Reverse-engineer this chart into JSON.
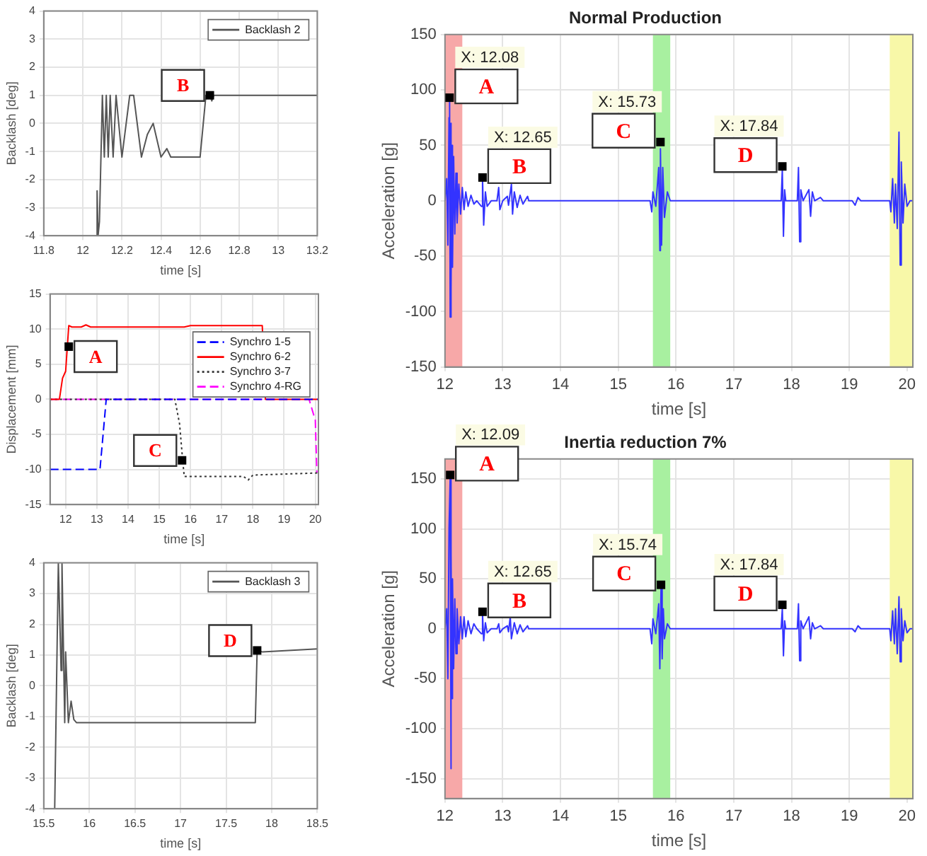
{
  "chart_data": [
    {
      "type": "line",
      "xlabel": "time [s]",
      "ylabel": "Backlash [deg]",
      "xlim": [
        11.8,
        13.2
      ],
      "xticks": [
        11.8,
        12,
        12.2,
        12.4,
        12.6,
        12.8,
        13,
        13.2
      ],
      "ylim": [
        -4,
        4
      ],
      "yticks": [
        -4,
        -3,
        -2,
        -1,
        0,
        1,
        2,
        3,
        4
      ],
      "grid": true,
      "legend": "top right",
      "series": [
        {
          "name": "Backlash 2",
          "color": "#555555",
          "x": [
            12.07,
            12.073,
            12.078,
            12.085,
            12.1,
            12.11,
            12.12,
            12.13,
            12.14,
            12.155,
            12.17,
            12.2,
            12.24,
            12.26,
            12.3,
            12.33,
            12.36,
            12.4,
            12.43,
            12.45,
            12.5,
            12.6,
            12.63,
            12.65,
            12.66,
            12.67,
            13.2
          ],
          "values": [
            -4,
            -2.4,
            -4,
            -3.5,
            1,
            -1.2,
            1,
            -1.2,
            1,
            -1.2,
            1,
            -1.2,
            1,
            1,
            -1.2,
            -0.4,
            0,
            -1.2,
            -0.9,
            -1.2,
            -1.2,
            -1.2,
            1,
            1,
            0.8,
            1,
            1
          ]
        }
      ],
      "annotations": [
        {
          "text": "B",
          "x": 12.65,
          "y": 1
        }
      ]
    },
    {
      "type": "line",
      "xlabel": "time [s]",
      "ylabel": "Displacement [mm]",
      "xlim": [
        11.5,
        20.1
      ],
      "xticks": [
        12,
        13,
        14,
        15,
        16,
        17,
        18,
        19,
        20
      ],
      "ylim": [
        -15,
        15
      ],
      "yticks": [
        -15,
        -10,
        -5,
        0,
        5,
        10,
        15
      ],
      "grid": true,
      "legend": "right",
      "series": [
        {
          "name": "Synchro 1-5",
          "color": "#0000ff",
          "line_style": "dashed",
          "x": [
            11.5,
            13.1,
            13.3,
            20.1
          ],
          "values": [
            -10,
            -10,
            0,
            0
          ]
        },
        {
          "name": "Synchro 6-2",
          "color": "#ff0000",
          "line_style": "solid",
          "x": [
            11.5,
            11.8,
            11.9,
            12,
            12.1,
            12.2,
            12.5,
            12.65,
            12.8,
            15.8,
            16,
            18.3,
            18.4,
            20.1
          ],
          "values": [
            0,
            0,
            3,
            4,
            10.5,
            10.3,
            10.3,
            10.6,
            10.3,
            10.3,
            10.5,
            10.5,
            0,
            0
          ]
        },
        {
          "name": "Synchro 3-7",
          "color": "#333333",
          "line_style": "dotted",
          "x": [
            11.5,
            15.5,
            15.65,
            15.75,
            15.8,
            17.7,
            17.85,
            18,
            20.1
          ],
          "values": [
            0,
            0,
            -3.5,
            -8.7,
            -11,
            -11,
            -11.5,
            -10.8,
            -10.5
          ]
        },
        {
          "name": "Synchro 4-RG",
          "color": "#ff00ff",
          "line_style": "dashed",
          "x": [
            11.5,
            19.8,
            20,
            20.05
          ],
          "values": [
            0,
            0,
            -3,
            -10.5
          ]
        }
      ],
      "annotations": [
        {
          "text": "A",
          "x": 12.1,
          "y": 7.5
        },
        {
          "text": "C",
          "x": 15.73,
          "y": -8.7
        }
      ]
    },
    {
      "type": "line",
      "xlabel": "time [s]",
      "ylabel": "Backlash [deg]",
      "xlim": [
        15.5,
        18.5
      ],
      "xticks": [
        15.5,
        16,
        16.5,
        17,
        17.5,
        18,
        18.5
      ],
      "ylim": [
        -4,
        4
      ],
      "yticks": [
        -4,
        -3,
        -2,
        -1,
        0,
        1,
        2,
        3,
        4
      ],
      "grid": true,
      "legend": "top right",
      "series": [
        {
          "name": "Backlash 3",
          "color": "#555555",
          "x": [
            15.62,
            15.66,
            15.69,
            15.7,
            15.73,
            15.74,
            15.77,
            15.8,
            15.83,
            15.86,
            17.82,
            17.84,
            17.9,
            18.5
          ],
          "values": [
            -4,
            4,
            0.5,
            4,
            -1.2,
            1.1,
            -1.2,
            -0.5,
            -1.1,
            -1.2,
            -1.2,
            1.15,
            1.1,
            1.2
          ]
        }
      ],
      "annotations": [
        {
          "text": "D",
          "x": 17.84,
          "y": 1.15
        }
      ]
    },
    {
      "type": "line",
      "title": "Normal Production",
      "xlabel": "time [s]",
      "ylabel": "Acceleration [g]",
      "xlim": [
        12,
        20.1
      ],
      "xticks": [
        12,
        13,
        14,
        15,
        16,
        17,
        18,
        19,
        20
      ],
      "ylim": [
        -150,
        150
      ],
      "yticks": [
        -150,
        -100,
        -50,
        0,
        50,
        100,
        150
      ],
      "grid": true,
      "bands": [
        {
          "axis": "x",
          "from": 12,
          "to": 12.3,
          "color": "#f7a8a8"
        },
        {
          "axis": "x",
          "from": 15.6,
          "to": 15.9,
          "color": "#a8f0a0"
        },
        {
          "axis": "x",
          "from": 19.7,
          "to": 20.1,
          "color": "#f8f8a8"
        }
      ],
      "series": [
        {
          "color": "#3333ff",
          "x": [
            12,
            12.03,
            12.05,
            12.07,
            12.08,
            12.09,
            12.1,
            12.11,
            12.12,
            12.13,
            12.15,
            12.17,
            12.19,
            12.21,
            12.24,
            12.27,
            12.3,
            12.33,
            12.36,
            12.4,
            12.45,
            12.5,
            12.55,
            12.63,
            12.65,
            12.67,
            12.7,
            12.73,
            12.8,
            12.9,
            12.93,
            12.95,
            13,
            13.08,
            13.1,
            13.15,
            13.17,
            13.2,
            13.25,
            13.3,
            13.35,
            13.43,
            13.45,
            15.55,
            15.58,
            15.6,
            15.65,
            15.7,
            15.72,
            15.73,
            15.75,
            15.77,
            15.8,
            15.85,
            15.9,
            17.82,
            17.84,
            17.86,
            17.88,
            17.9,
            18.1,
            18.12,
            18.14,
            18.16,
            18.2,
            18.3,
            18.33,
            18.36,
            18.4,
            18.5,
            18.55,
            19.05,
            19.1,
            19.15,
            19.2,
            19.7,
            19.72,
            19.75,
            19.78,
            19.8,
            19.83,
            19.86,
            19.88,
            19.9,
            19.93,
            19.96,
            20,
            20.05,
            20.1
          ],
          "values": [
            0,
            20,
            -40,
            75,
            90,
            -105,
            70,
            -80,
            50,
            -60,
            40,
            -30,
            25,
            -20,
            15,
            -12,
            12,
            -8,
            8,
            -5,
            5,
            -3,
            0,
            -5,
            21,
            -22,
            8,
            -5,
            0,
            0,
            12,
            -8,
            0,
            4,
            -4,
            15,
            -12,
            8,
            -6,
            5,
            -3,
            4,
            0,
            0,
            -10,
            8,
            -5,
            30,
            -45,
            47,
            -40,
            30,
            -15,
            8,
            0,
            0,
            28,
            -32,
            10,
            0,
            0,
            30,
            -37,
            10,
            0,
            10,
            -14,
            8,
            0,
            3,
            0,
            0,
            -4,
            3,
            0,
            0,
            -10,
            20,
            -20,
            15,
            -25,
            62,
            -58,
            35,
            -20,
            15,
            -5,
            0,
            0
          ]
        }
      ],
      "annotations": [
        {
          "text": "A",
          "x": 12.08,
          "y": 93
        },
        {
          "text": "X: 12.08",
          "x": 12.08,
          "y": 93
        },
        {
          "text": "B",
          "x": 12.65,
          "y": 21
        },
        {
          "text": "X: 12.65",
          "x": 12.65,
          "y": 21
        },
        {
          "text": "C",
          "x": 15.73,
          "y": 53
        },
        {
          "text": "X: 15.73",
          "x": 15.73,
          "y": 53
        },
        {
          "text": "D",
          "x": 17.84,
          "y": 31
        },
        {
          "text": "X: 17.84",
          "x": 17.84,
          "y": 31
        }
      ]
    },
    {
      "type": "line",
      "title": "Inertia reduction 7%",
      "xlabel": "time [s]",
      "ylabel": "Acceleration [g]",
      "xlim": [
        12,
        20.1
      ],
      "xticks": [
        12,
        13,
        14,
        15,
        16,
        17,
        18,
        19,
        20
      ],
      "ylim": [
        -170,
        170
      ],
      "yticks": [
        -150,
        -100,
        -50,
        0,
        50,
        100,
        150
      ],
      "grid": true,
      "bands": [
        {
          "axis": "x",
          "from": 12,
          "to": 12.3,
          "color": "#f7a8a8"
        },
        {
          "axis": "x",
          "from": 15.6,
          "to": 15.9,
          "color": "#a8f0a0"
        },
        {
          "axis": "x",
          "from": 19.7,
          "to": 20.1,
          "color": "#f8f8a8"
        }
      ],
      "series": [
        {
          "color": "#3333ff",
          "x": [
            12,
            12.03,
            12.05,
            12.07,
            12.09,
            12.1,
            12.11,
            12.12,
            12.13,
            12.15,
            12.17,
            12.19,
            12.21,
            12.24,
            12.27,
            12.3,
            12.33,
            12.36,
            12.4,
            12.45,
            12.5,
            12.55,
            12.63,
            12.65,
            12.67,
            12.7,
            12.73,
            12.8,
            12.9,
            12.93,
            12.95,
            13,
            13.08,
            13.1,
            13.13,
            13.15,
            13.2,
            13.25,
            13.3,
            13.35,
            13.43,
            13.45,
            15.55,
            15.58,
            15.6,
            15.65,
            15.7,
            15.72,
            15.74,
            15.76,
            15.78,
            15.8,
            15.85,
            15.9,
            17.82,
            17.84,
            17.86,
            17.88,
            17.9,
            18.1,
            18.12,
            18.14,
            18.16,
            18.2,
            18.3,
            18.33,
            18.36,
            18.4,
            18.5,
            18.55,
            19.05,
            19.1,
            19.15,
            19.2,
            19.7,
            19.72,
            19.75,
            19.78,
            19.8,
            19.83,
            19.86,
            19.88,
            19.9,
            19.93,
            19.96,
            20,
            20.05,
            20.1
          ],
          "values": [
            0,
            20,
            -50,
            100,
            152,
            -140,
            75,
            -70,
            50,
            -40,
            30,
            -25,
            20,
            -15,
            12,
            -10,
            12,
            -8,
            8,
            -5,
            5,
            0,
            -5,
            15,
            -12,
            6,
            -4,
            0,
            0,
            5,
            -4,
            0,
            3,
            -3,
            12,
            -10,
            6,
            -5,
            4,
            -3,
            3,
            0,
            0,
            -15,
            10,
            -5,
            25,
            -40,
            40,
            -30,
            20,
            -10,
            5,
            0,
            0,
            20,
            -27,
            8,
            0,
            0,
            25,
            -32,
            8,
            0,
            12,
            -10,
            6,
            0,
            3,
            0,
            0,
            -3,
            3,
            0,
            0,
            -12,
            18,
            -15,
            20,
            -25,
            32,
            -33,
            20,
            -12,
            8,
            -4,
            0,
            0
          ]
        }
      ],
      "annotations": [
        {
          "text": "A",
          "x": 12.09,
          "y": 154
        },
        {
          "text": "X: 12.09",
          "x": 12.09,
          "y": 154
        },
        {
          "text": "B",
          "x": 12.65,
          "y": 17
        },
        {
          "text": "X: 12.65",
          "x": 12.65,
          "y": 17
        },
        {
          "text": "C",
          "x": 15.74,
          "y": 44
        },
        {
          "text": "X: 15.74",
          "x": 15.74,
          "y": 44
        },
        {
          "text": "D",
          "x": 17.84,
          "y": 24
        },
        {
          "text": "X: 17.84",
          "x": 17.84,
          "y": 24
        }
      ]
    }
  ]
}
